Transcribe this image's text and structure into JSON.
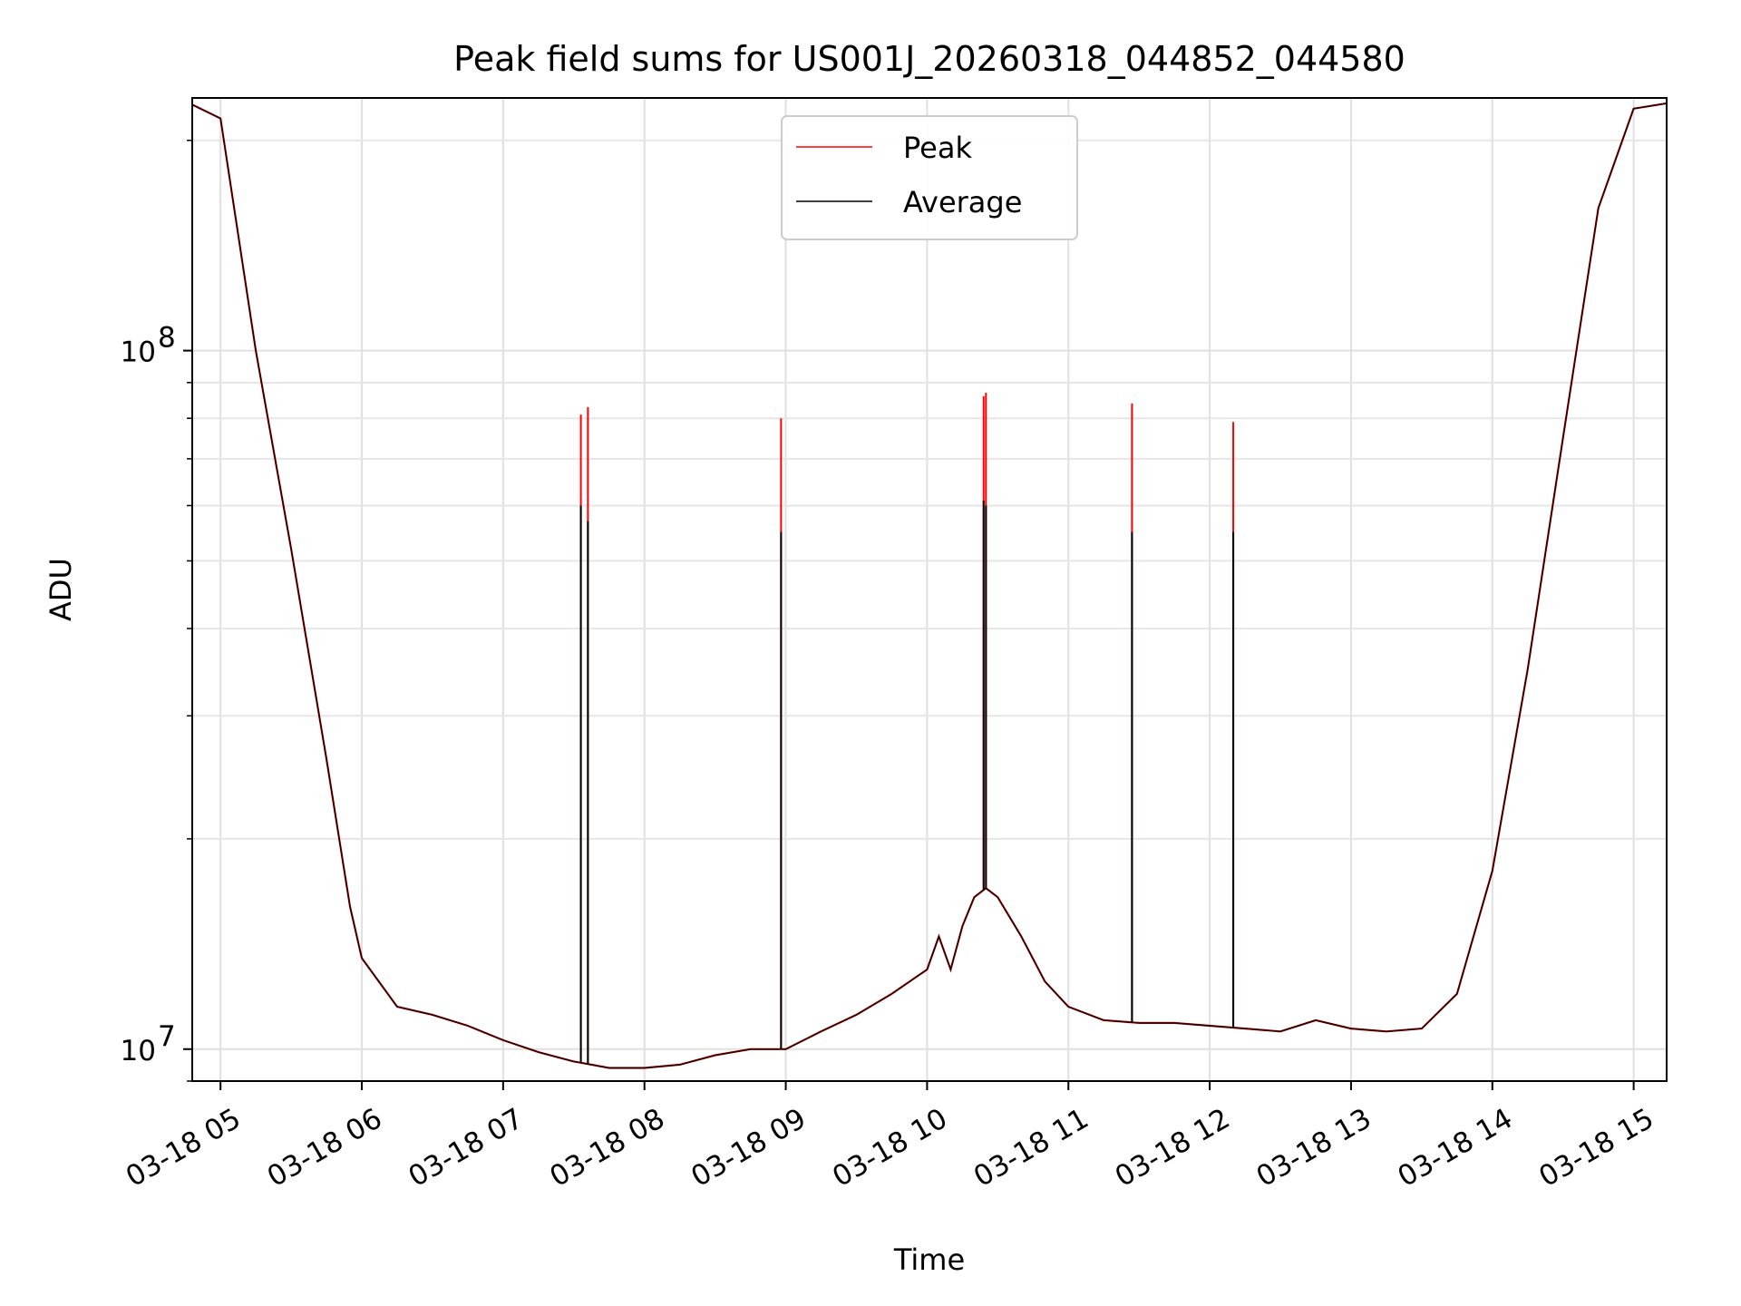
{
  "chart_data": {
    "type": "line",
    "title": "Peak field sums for US001J_20260318_044852_044580",
    "xlabel": "Time",
    "ylabel": "ADU",
    "yscale": "log",
    "xlim": [
      "03-18 04:48",
      "03-18 15:14"
    ],
    "ylim": [
      9000000,
      230000000
    ],
    "grid": true,
    "legend": {
      "placement": "top-center",
      "entries": [
        "Peak",
        "Average"
      ]
    },
    "x_ticks": [
      "03-18 05",
      "03-18 06",
      "03-18 07",
      "03-18 08",
      "03-18 09",
      "03-18 10",
      "03-18 11",
      "03-18 12",
      "03-18 13",
      "03-18 14",
      "03-18 15"
    ],
    "y_ticks": [
      {
        "base": "10",
        "exp": "8",
        "value": 100000000
      },
      {
        "base": "10",
        "exp": "7",
        "value": 10000000
      }
    ],
    "series": [
      {
        "name": "Average",
        "color": "#000000",
        "x": [
          "03-18 04:48",
          "03-18 05:00",
          "03-18 05:15",
          "03-18 05:30",
          "03-18 05:45",
          "03-18 05:55",
          "03-18 06:00",
          "03-18 06:15",
          "03-18 06:30",
          "03-18 06:45",
          "03-18 07:00",
          "03-18 07:15",
          "03-18 07:30",
          "03-18 07:45",
          "03-18 08:00",
          "03-18 08:15",
          "03-18 08:30",
          "03-18 08:45",
          "03-18 09:00",
          "03-18 09:15",
          "03-18 09:30",
          "03-18 09:45",
          "03-18 10:00",
          "03-18 10:05",
          "03-18 10:10",
          "03-18 10:15",
          "03-18 10:20",
          "03-18 10:25",
          "03-18 10:30",
          "03-18 10:40",
          "03-18 10:50",
          "03-18 11:00",
          "03-18 11:15",
          "03-18 11:30",
          "03-18 11:45",
          "03-18 12:00",
          "03-18 12:15",
          "03-18 12:30",
          "03-18 12:45",
          "03-18 13:00",
          "03-18 13:15",
          "03-18 13:30",
          "03-18 13:45",
          "03-18 14:00",
          "03-18 14:15",
          "03-18 14:30",
          "03-18 14:45",
          "03-18 15:00",
          "03-18 15:14"
        ],
        "values": [
          225000000,
          215000000,
          100000000,
          52000000,
          26000000,
          16000000,
          13500000,
          11500000,
          11200000,
          10800000,
          10300000,
          9900000,
          9600000,
          9400000,
          9400000,
          9500000,
          9800000,
          10000000,
          10000000,
          10600000,
          11200000,
          12000000,
          13000000,
          14500000,
          13000000,
          15000000,
          16500000,
          17000000,
          16500000,
          14500000,
          12500000,
          11500000,
          11000000,
          10900000,
          10900000,
          10800000,
          10700000,
          10600000,
          11000000,
          10700000,
          10600000,
          10700000,
          12000000,
          18000000,
          35000000,
          75000000,
          160000000,
          222000000,
          226000000
        ]
      },
      {
        "name": "Peak",
        "color": "#ff0000",
        "spikes": [
          {
            "x": "03-18 07:33",
            "peak": 81000000,
            "avg": 60000000
          },
          {
            "x": "03-18 07:36",
            "peak": 83000000,
            "avg": 57000000
          },
          {
            "x": "03-18 08:58",
            "peak": 80000000,
            "avg": 55000000
          },
          {
            "x": "03-18 10:24",
            "peak": 86000000,
            "avg": 61000000
          },
          {
            "x": "03-18 10:25",
            "peak": 87000000,
            "avg": 60000000
          },
          {
            "x": "03-18 11:27",
            "peak": 84000000,
            "avg": 55000000
          },
          {
            "x": "03-18 12:10",
            "peak": 79000000,
            "avg": 55000000
          }
        ]
      }
    ]
  }
}
